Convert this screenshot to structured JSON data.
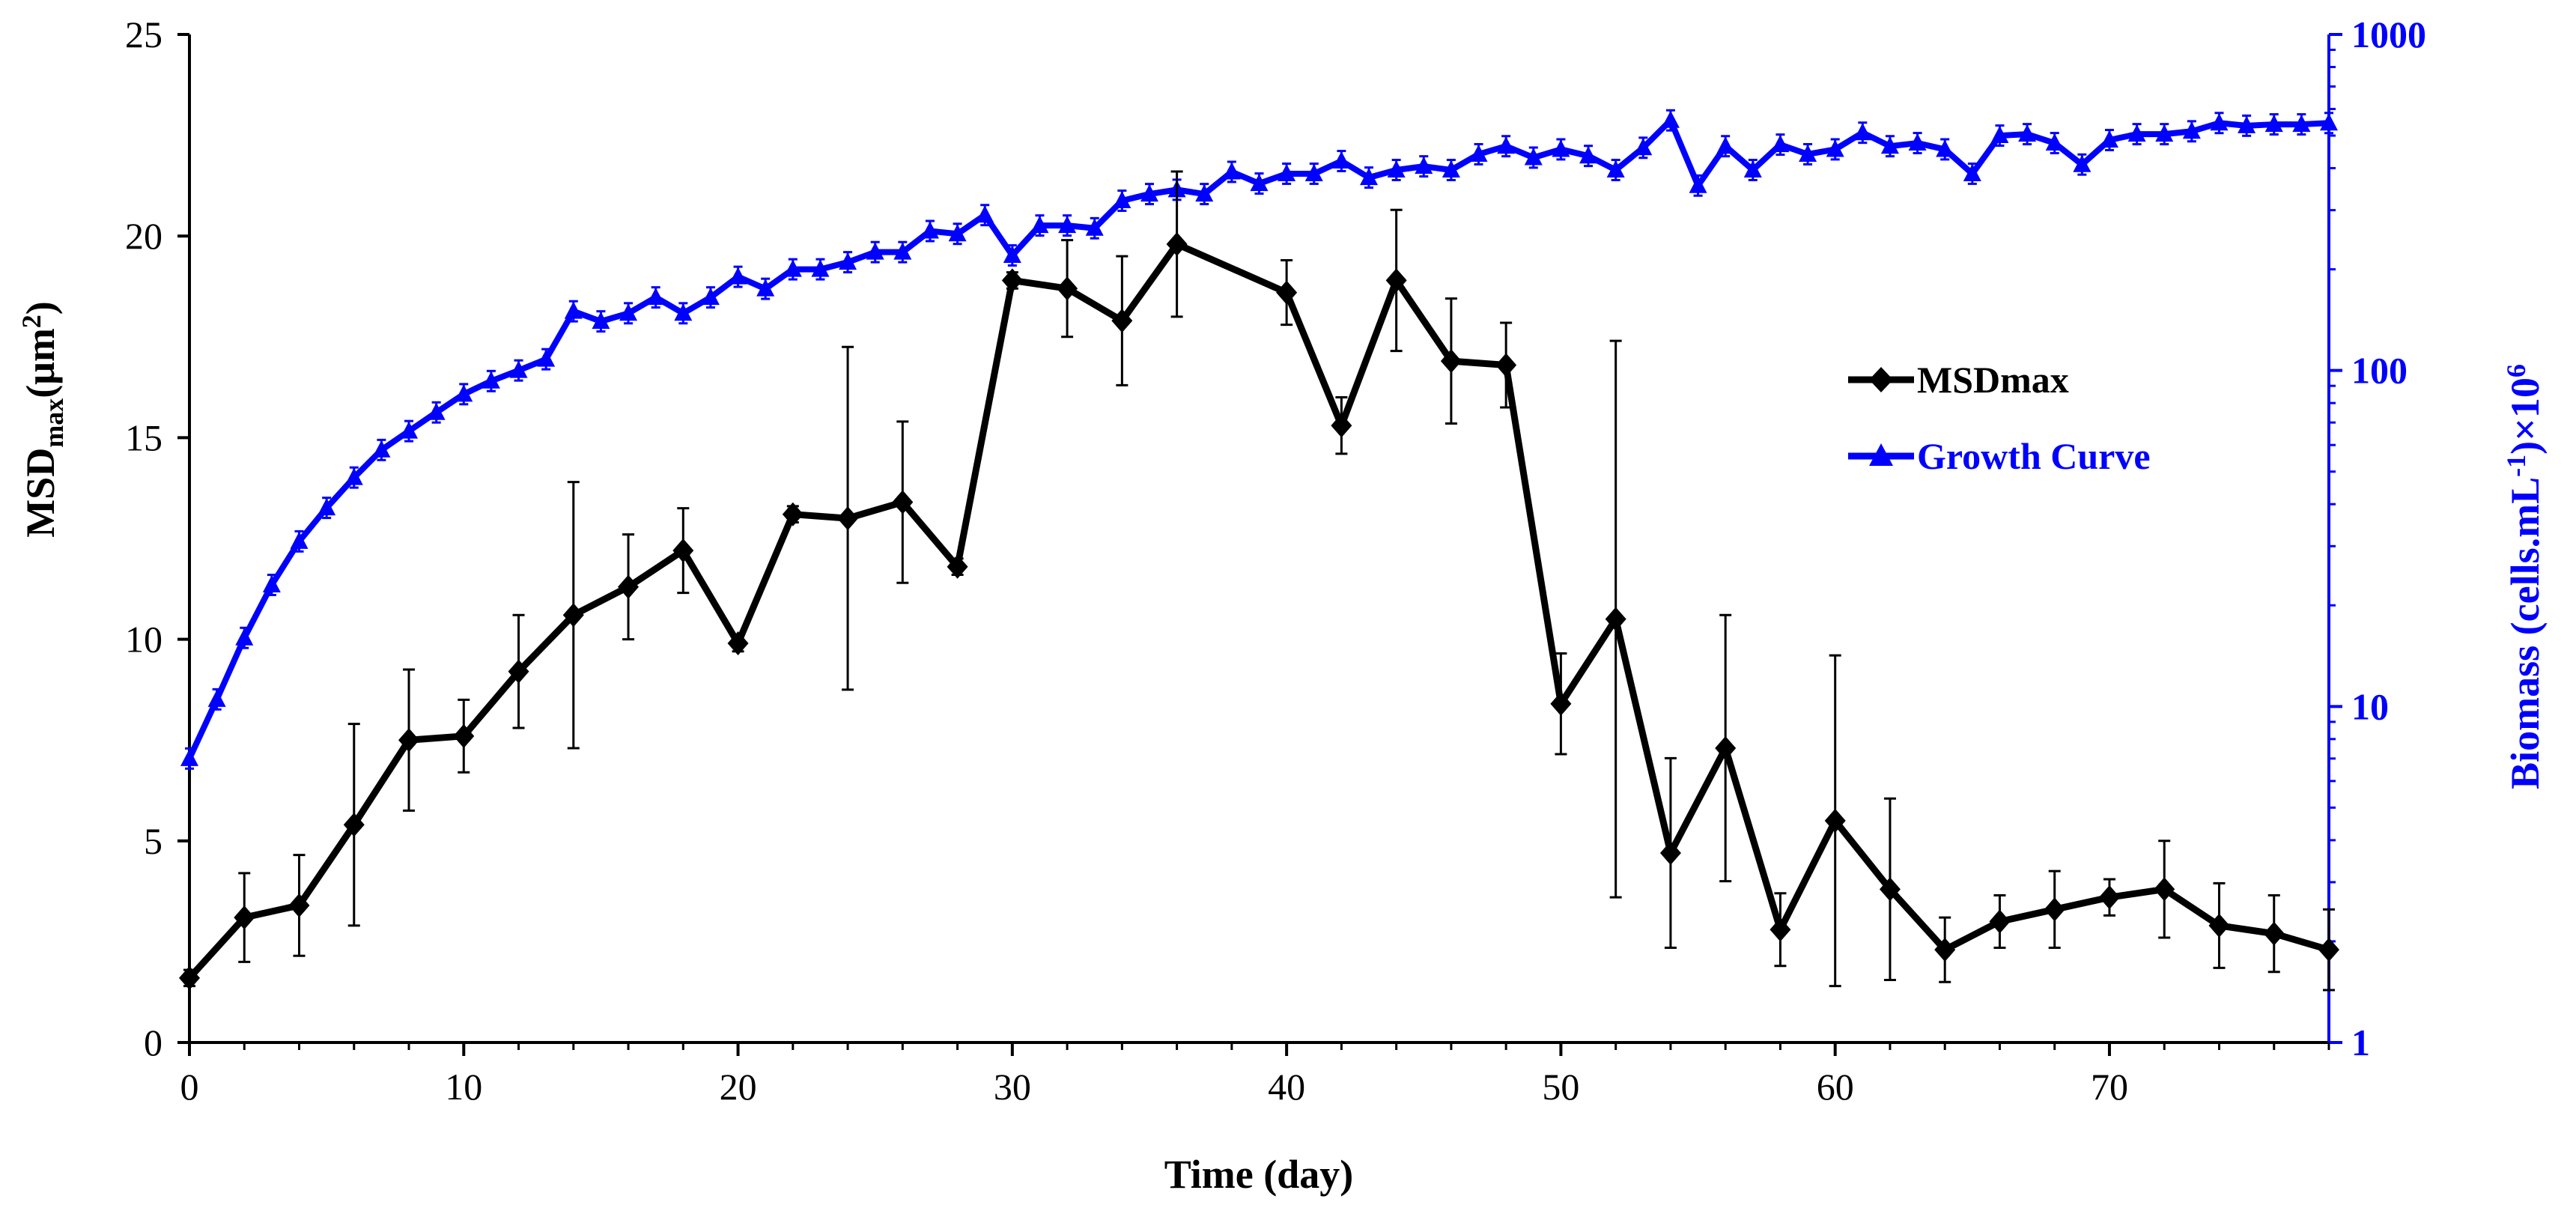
{
  "chart_data": {
    "type": "line",
    "xlabel": "Time (day)",
    "ylabel_left": {
      "main": "MSD",
      "sub": "max",
      "unit_open": "(μm",
      "unit_sup": "2",
      "unit_close": ")"
    },
    "ylabel_right": {
      "main": "Biomass (cells.mL",
      "sup1": "-1",
      "mid": ")×10",
      "sup2": "6"
    },
    "xlim": [
      0,
      78
    ],
    "x_ticks": [
      "0",
      "10",
      "20",
      "30",
      "40",
      "50",
      "60",
      "70"
    ],
    "ylim_left": [
      0,
      25
    ],
    "y_ticks_left": [
      "0",
      "5",
      "10",
      "15",
      "20",
      "25"
    ],
    "ylim_right_log": [
      1,
      1000
    ],
    "y_ticks_right": [
      "1",
      "10",
      "100",
      "1000"
    ],
    "colors": {
      "msd": "#000000",
      "growth": "#0000ff"
    },
    "series": [
      {
        "name": "MSDmax",
        "axis": "left",
        "marker": "diamond",
        "x": [
          0,
          2,
          4,
          6,
          8,
          10,
          12,
          14,
          16,
          18,
          20,
          22,
          24,
          26,
          28,
          30,
          32,
          34,
          36,
          40,
          42,
          44,
          46,
          48,
          50,
          52,
          54,
          56,
          58,
          60,
          62,
          64,
          66,
          68,
          70,
          72,
          74,
          76,
          78
        ],
        "values": [
          1.6,
          3.1,
          3.4,
          5.4,
          7.5,
          7.6,
          9.2,
          10.6,
          11.3,
          12.2,
          9.9,
          13.1,
          13.0,
          13.4,
          11.8,
          18.9,
          18.7,
          17.9,
          19.8,
          18.6,
          15.3,
          18.9,
          16.9,
          16.8,
          8.4,
          10.5,
          4.7,
          7.3,
          2.8,
          5.5,
          3.8,
          2.3,
          3.0,
          3.3,
          3.6,
          3.8,
          2.9,
          2.7,
          2.3
        ],
        "errors": [
          0.2,
          1.1,
          1.25,
          2.5,
          1.75,
          0.9,
          1.4,
          3.3,
          1.3,
          1.05,
          0.2,
          0.2,
          4.25,
          2.0,
          0.2,
          0.2,
          1.2,
          1.6,
          1.8,
          0.8,
          0.7,
          1.75,
          1.55,
          1.05,
          1.25,
          6.9,
          2.35,
          3.3,
          0.9,
          4.1,
          2.25,
          0.8,
          0.65,
          0.95,
          0.45,
          1.2,
          1.05,
          0.95,
          1.0
        ]
      },
      {
        "name": "Growth Curve",
        "axis": "right",
        "marker": "triangle",
        "x": [
          0,
          1,
          2,
          3,
          4,
          5,
          6,
          7,
          8,
          9,
          10,
          11,
          12,
          13,
          14,
          15,
          16,
          17,
          18,
          19,
          20,
          21,
          22,
          23,
          24,
          25,
          26,
          27,
          28,
          29,
          30,
          31,
          32,
          33,
          34,
          35,
          36,
          37,
          38,
          39,
          40,
          41,
          42,
          43,
          44,
          45,
          46,
          47,
          48,
          49,
          50,
          51,
          52,
          53,
          54,
          55,
          56,
          57,
          58,
          59,
          60,
          61,
          62,
          63,
          64,
          65,
          66,
          67,
          68,
          69,
          70,
          71,
          72,
          73,
          74,
          75,
          76,
          77,
          78
        ],
        "values": [
          7,
          10.5,
          16,
          23,
          31,
          39,
          48,
          58,
          66,
          75,
          85,
          93,
          100,
          108,
          150,
          140,
          148,
          165,
          148,
          165,
          190,
          175,
          200,
          200,
          210,
          225,
          225,
          260,
          255,
          290,
          220,
          270,
          270,
          265,
          320,
          335,
          345,
          335,
          390,
          360,
          385,
          385,
          420,
          375,
          395,
          405,
          395,
          440,
          465,
          430,
          455,
          435,
          395,
          460,
          555,
          355,
          465,
          395,
          470,
          440,
          455,
          510,
          465,
          475,
          455,
          385,
          500,
          505,
          475,
          410,
          485,
          505,
          505,
          515,
          545,
          535,
          540,
          540,
          545
        ],
        "errors_log": 0.03
      }
    ],
    "legend": {
      "position": "center-right",
      "entries": [
        "MSDmax",
        "Growth Curve"
      ]
    }
  }
}
